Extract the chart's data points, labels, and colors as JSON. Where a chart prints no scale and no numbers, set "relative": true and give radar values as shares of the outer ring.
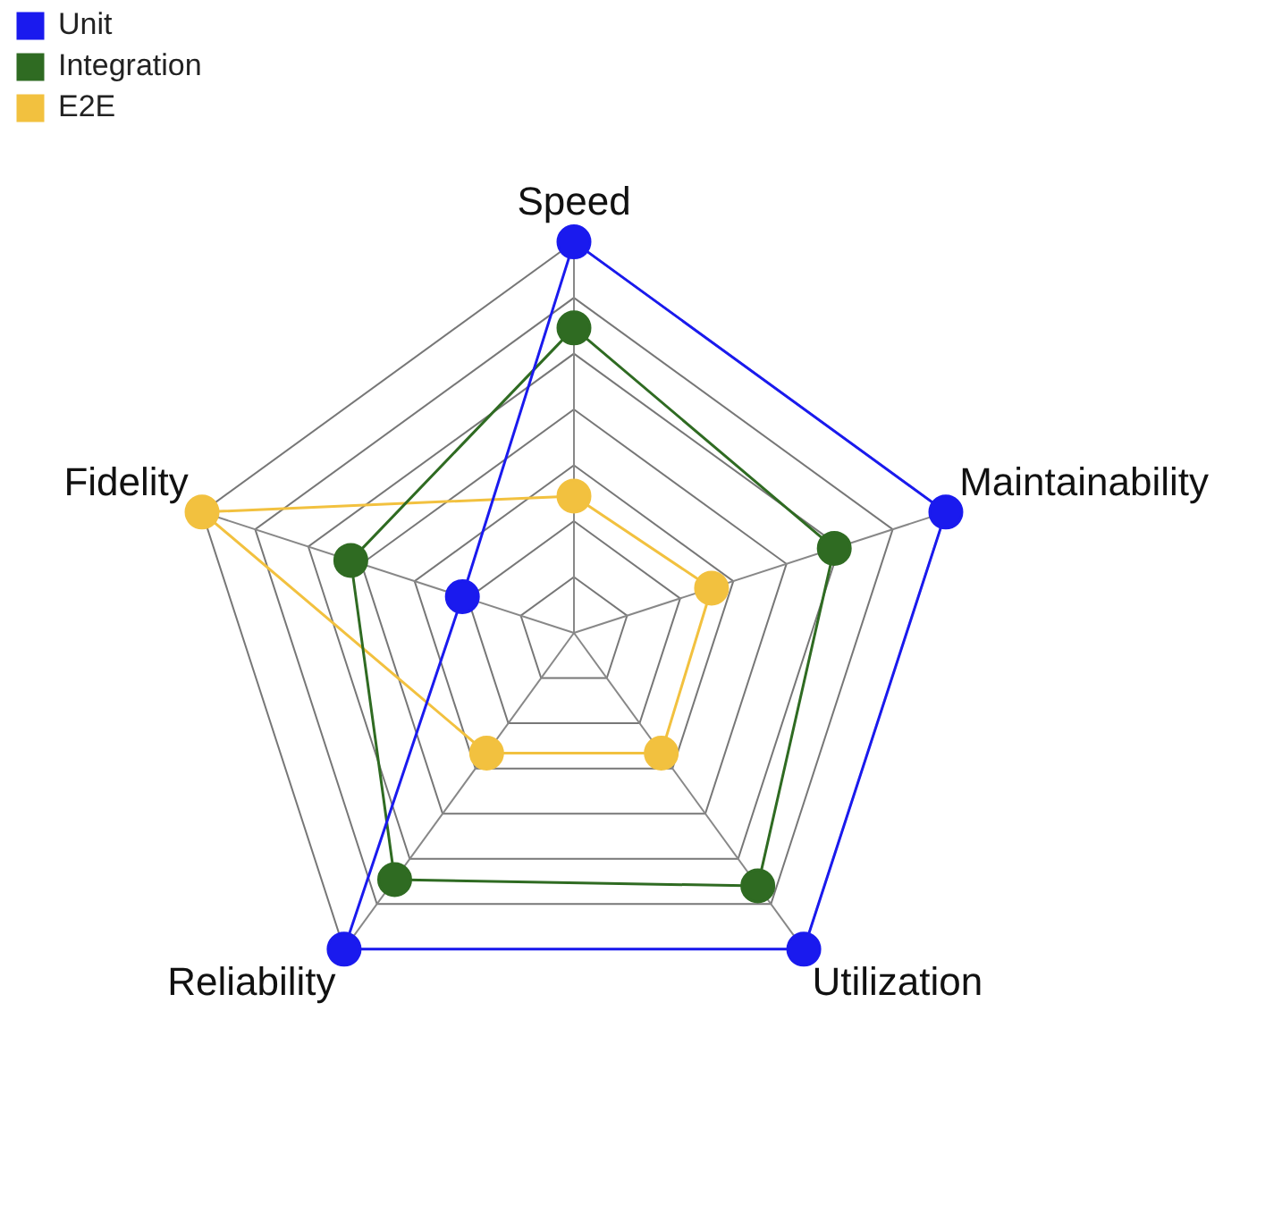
{
  "chart_data": {
    "type": "radar",
    "relative": true,
    "categories": [
      "Speed",
      "Maintainability",
      "Utilization",
      "Reliability",
      "Fidelity"
    ],
    "series": [
      {
        "name": "Unit",
        "color": "#1a1aee",
        "values": [
          1,
          1,
          1,
          1,
          0.3
        ]
      },
      {
        "name": "Integration",
        "color": "#2f6b22",
        "values": [
          0.78,
          0.7,
          0.8,
          0.78,
          0.6
        ]
      },
      {
        "name": "E2E",
        "color": "#f2c13f",
        "values": [
          0.35,
          0.37,
          0.38,
          0.38,
          1
        ]
      }
    ],
    "legend": "top left",
    "grid": true,
    "marker": "circle",
    "line_style": "solid"
  }
}
